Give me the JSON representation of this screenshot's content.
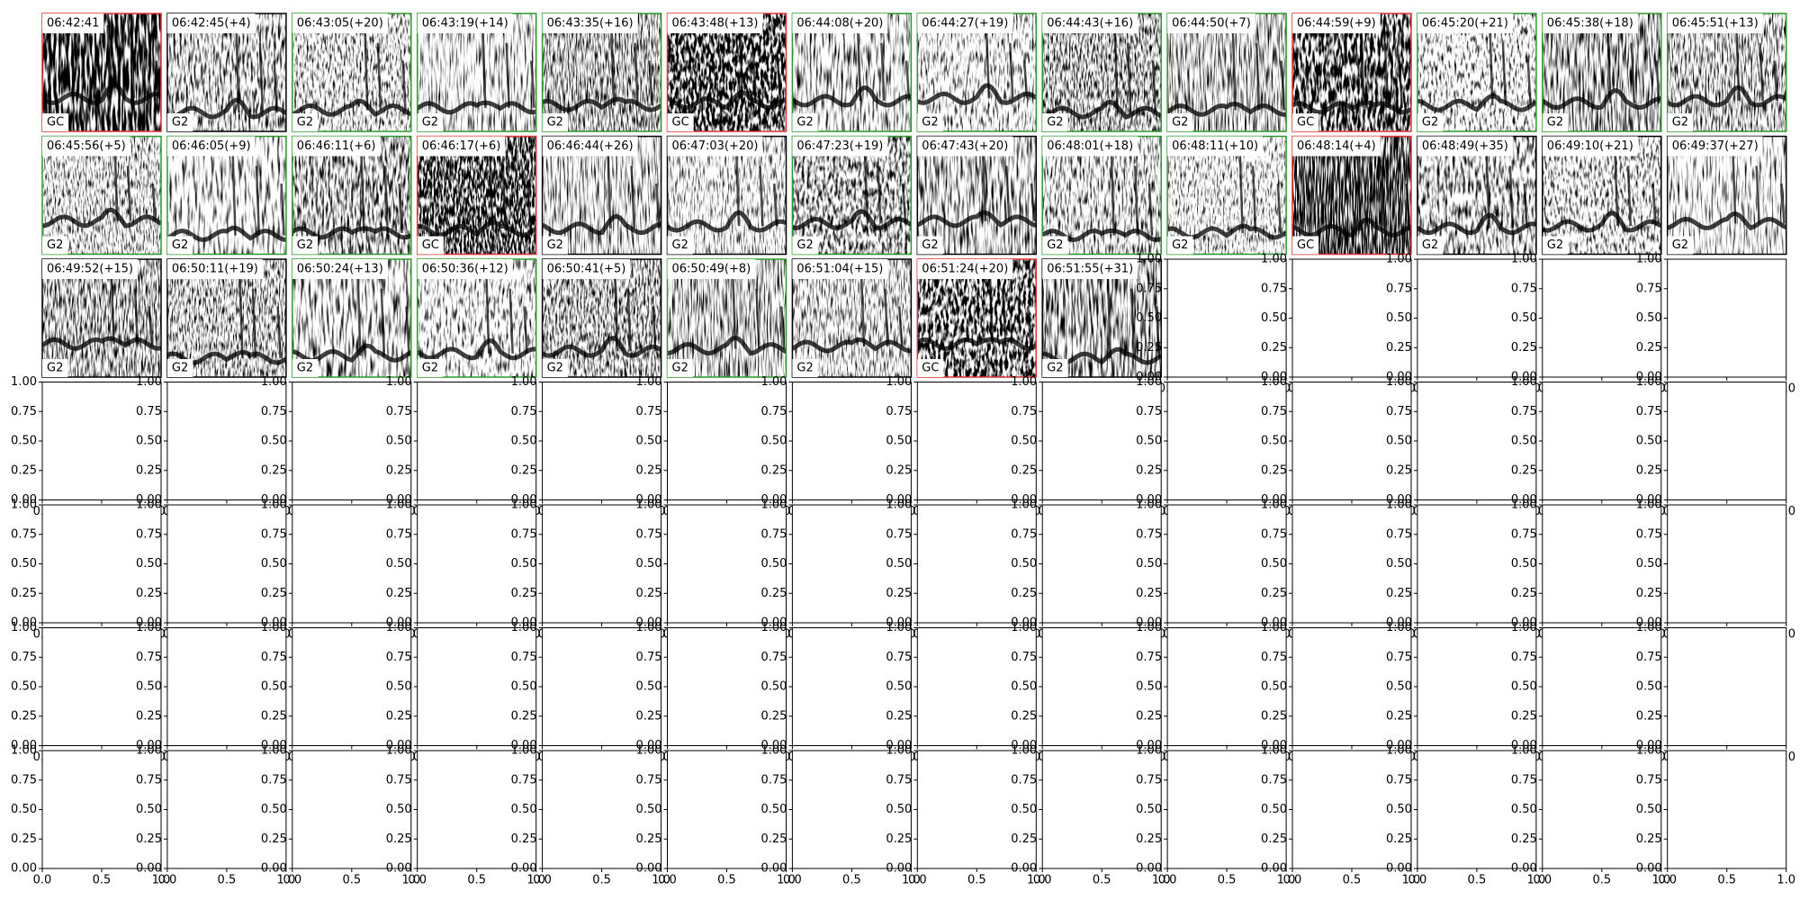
{
  "panels": [
    {
      "title": "06:42:41",
      "label": "GC",
      "border": "#e03030"
    },
    {
      "title": "06:42:45(+4)",
      "label": "G2",
      "border": "#000000"
    },
    {
      "title": "06:43:05(+20)",
      "label": "G2",
      "border": "#2a9a2a"
    },
    {
      "title": "06:43:19(+14)",
      "label": "G2",
      "border": "#2a9a2a"
    },
    {
      "title": "06:43:35(+16)",
      "label": "G2",
      "border": "#2a9a2a"
    },
    {
      "title": "06:43:48(+13)",
      "label": "GC",
      "border": "#e03030"
    },
    {
      "title": "06:44:08(+20)",
      "label": "G2",
      "border": "#2a9a2a"
    },
    {
      "title": "06:44:27(+19)",
      "label": "G2",
      "border": "#2a9a2a"
    },
    {
      "title": "06:44:43(+16)",
      "label": "G2",
      "border": "#2a9a2a"
    },
    {
      "title": "06:44:50(+7)",
      "label": "G2",
      "border": "#2a9a2a"
    },
    {
      "title": "06:44:59(+9)",
      "label": "GC",
      "border": "#e03030"
    },
    {
      "title": "06:45:20(+21)",
      "label": "G2",
      "border": "#2a9a2a"
    },
    {
      "title": "06:45:38(+18)",
      "label": "G2",
      "border": "#2a9a2a"
    },
    {
      "title": "06:45:51(+13)",
      "label": "G2",
      "border": "#2a9a2a"
    },
    {
      "title": "06:45:56(+5)",
      "label": "G2",
      "border": "#2a9a2a"
    },
    {
      "title": "06:46:05(+9)",
      "label": "G2",
      "border": "#2a9a2a"
    },
    {
      "title": "06:46:11(+6)",
      "label": "G2",
      "border": "#2a9a2a"
    },
    {
      "title": "06:46:17(+6)",
      "label": "GC",
      "border": "#e03030"
    },
    {
      "title": "06:46:44(+26)",
      "label": "G2",
      "border": "#000000"
    },
    {
      "title": "06:47:03(+20)",
      "label": "G2",
      "border": "#000000"
    },
    {
      "title": "06:47:23(+19)",
      "label": "G2",
      "border": "#2a9a2a"
    },
    {
      "title": "06:47:43(+20)",
      "label": "G2",
      "border": "#000000"
    },
    {
      "title": "06:48:01(+18)",
      "label": "G2",
      "border": "#2a9a2a"
    },
    {
      "title": "06:48:11(+10)",
      "label": "G2",
      "border": "#2a9a2a"
    },
    {
      "title": "06:48:14(+4)",
      "label": "GC",
      "border": "#e03030"
    },
    {
      "title": "06:48:49(+35)",
      "label": "G2",
      "border": "#000000"
    },
    {
      "title": "06:49:10(+21)",
      "label": "G2",
      "border": "#000000"
    },
    {
      "title": "06:49:37(+27)",
      "label": "G2",
      "border": "#000000"
    },
    {
      "title": "06:49:52(+15)",
      "label": "G2",
      "border": "#000000"
    },
    {
      "title": "06:50:11(+19)",
      "label": "G2",
      "border": "#000000"
    },
    {
      "title": "06:50:24(+13)",
      "label": "G2",
      "border": "#2a9a2a"
    },
    {
      "title": "06:50:36(+12)",
      "label": "G2",
      "border": "#2a9a2a"
    },
    {
      "title": "06:50:41(+5)",
      "label": "G2",
      "border": "#000000"
    },
    {
      "title": "06:50:49(+8)",
      "label": "G2",
      "border": "#2a9a2a"
    },
    {
      "title": "06:51:04(+15)",
      "label": "G2",
      "border": "#000000"
    },
    {
      "title": "06:51:24(+20)",
      "label": "GC",
      "border": "#e03030"
    },
    {
      "title": "06:51:55(+31)",
      "label": "G2",
      "border": "#000000"
    }
  ],
  "empty_axis": {
    "xticks": [
      {
        "value": 0,
        "label": "0.0"
      },
      {
        "value": 0.5,
        "label": "0.5"
      },
      {
        "value": 1,
        "label": "1.0"
      }
    ],
    "yticks": [
      {
        "value": 0,
        "label": "0.00"
      },
      {
        "value": 0.25,
        "label": "0.25"
      },
      {
        "value": 0.5,
        "label": "0.50"
      },
      {
        "value": 0.75,
        "label": "0.75"
      },
      {
        "value": 1,
        "label": "1.00"
      }
    ]
  }
}
